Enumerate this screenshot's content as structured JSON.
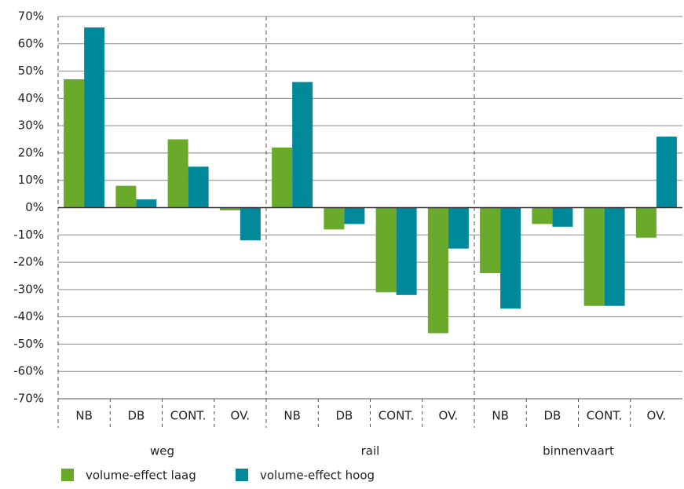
{
  "chart_data": {
    "type": "bar",
    "categories": [
      "NB",
      "DB",
      "CONT.",
      "OV.",
      "NB",
      "DB",
      "CONT.",
      "OV.",
      "NB",
      "DB",
      "CONT.",
      "OV."
    ],
    "groups": [
      "weg",
      "rail",
      "binnenvaart"
    ],
    "series": [
      {
        "name": "volume-effect laag",
        "color": "#6aaa2a",
        "values": [
          47,
          8,
          25,
          -1,
          22,
          -8,
          -31,
          -46,
          -24,
          -6,
          -36,
          -11
        ]
      },
      {
        "name": "volume-effect hoog",
        "color": "#00899b",
        "values": [
          66,
          3,
          15,
          -12,
          46,
          -6,
          -32,
          -15,
          -37,
          -7,
          -36,
          26
        ]
      }
    ],
    "ylim": [
      -70,
      70
    ],
    "yticks": [
      {
        "value": -70,
        "label": "-70%"
      },
      {
        "value": -60,
        "label": "-60%"
      },
      {
        "value": -50,
        "label": "-50%"
      },
      {
        "value": -40,
        "label": "-40%"
      },
      {
        "value": -30,
        "label": "-30%"
      },
      {
        "value": -20,
        "label": "-20%"
      },
      {
        "value": -10,
        "label": "-10%"
      },
      {
        "value": 0,
        "label": "0%"
      },
      {
        "value": 10,
        "label": "10%"
      },
      {
        "value": 20,
        "label": "20%"
      },
      {
        "value": 30,
        "label": "30%"
      },
      {
        "value": 40,
        "label": "40%"
      },
      {
        "value": 50,
        "label": "50%"
      },
      {
        "value": 60,
        "label": "60%"
      },
      {
        "value": 70,
        "label": "70%"
      }
    ],
    "grid": true,
    "legend": "bottom"
  }
}
